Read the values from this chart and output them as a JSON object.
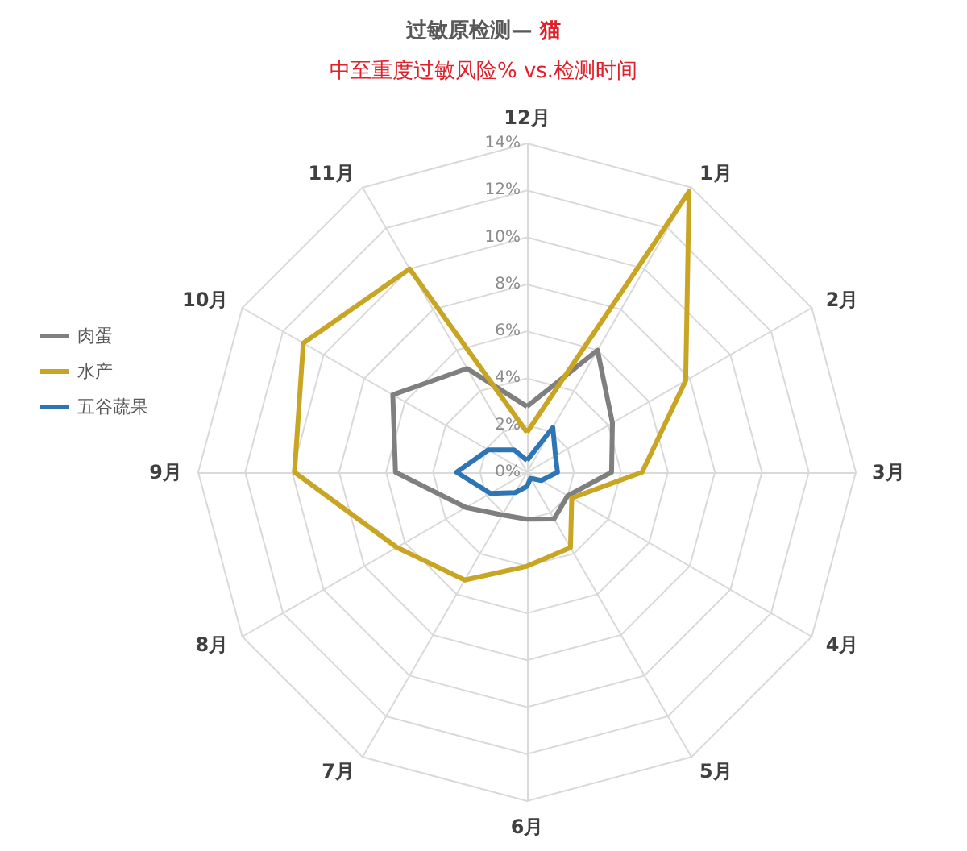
{
  "chart_data": {
    "type": "radar",
    "title": "过敏原检测— 猫",
    "subtitle": "中至重度过敏风险% vs.检测时间",
    "categories": [
      "12月",
      "1月",
      "2月",
      "3月",
      "4月",
      "5月",
      "6月",
      "7月",
      "8月",
      "9月",
      "10月",
      "11月"
    ],
    "series": [
      {
        "name": "肉蛋",
        "color": "#7f7f7f",
        "values": [
          2.8,
          6.0,
          4.2,
          3.6,
          2.0,
          2.3,
          2.0,
          2.1,
          3.0,
          5.6,
          6.6,
          5.1
        ]
      },
      {
        "name": "水产",
        "color": "#c9a524",
        "values": [
          1.7,
          13.8,
          7.8,
          4.9,
          2.2,
          3.7,
          4.0,
          5.3,
          6.4,
          9.9,
          11.0,
          10.0
        ]
      },
      {
        "name": "五谷蔬果",
        "color": "#2e75b6",
        "values": [
          0.5,
          2.2,
          1.4,
          1.3,
          0.7,
          0.3,
          0.6,
          1.0,
          1.8,
          3.0,
          1.9,
          1.1
        ]
      }
    ],
    "ylim": [
      0,
      14
    ],
    "yticks": [
      {
        "value": 0,
        "label": "0%"
      },
      {
        "value": 2,
        "label": "2%"
      },
      {
        "value": 4,
        "label": "4%"
      },
      {
        "value": 6,
        "label": "6%"
      },
      {
        "value": 8,
        "label": "8%"
      },
      {
        "value": 10,
        "label": "10%"
      },
      {
        "value": 12,
        "label": "12%"
      },
      {
        "value": 14,
        "label": "14%"
      }
    ],
    "grid": true,
    "legend": "left",
    "marker": "none",
    "line_style": "solid"
  }
}
